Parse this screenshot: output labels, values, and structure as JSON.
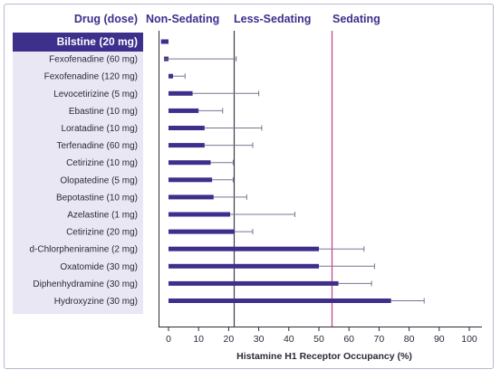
{
  "chart_data": {
    "type": "bar",
    "orientation": "horizontal",
    "header": {
      "drug_dose": "Drug (dose)",
      "zones": [
        "Non-Sedating",
        "Less-Sedating",
        "Sedating"
      ]
    },
    "categories": [
      "Bilstine (20 mg)",
      "Fexofenadine (60 mg)",
      "Fexofenadine (120 mg)",
      "Levocetirizine (5 mg)",
      "Ebastine (10 mg)",
      "Loratadine (10 mg)",
      "Terfenadine (60 mg)",
      "Cetirizine (10 mg)",
      "Olopatedine (5 mg)",
      "Bepotastine (10 mg)",
      "Azelastine (1 mg)",
      "Cetirizine (20 mg)",
      "d-Chlorpheniramine (2 mg)",
      "Oxatomide (30 mg)",
      "Diphenhydramine (30 mg)",
      "Hydroxyzine (30 mg)"
    ],
    "highlight_index": 0,
    "values": [
      -2.5,
      -1.5,
      1.5,
      8,
      10,
      12,
      12,
      14,
      14.5,
      15,
      20.5,
      22,
      50,
      50,
      56.5,
      74
    ],
    "error_upper": [
      null,
      22.5,
      5.5,
      30,
      18,
      31,
      28,
      21.5,
      21.5,
      26,
      42,
      28,
      65,
      68.5,
      67.5,
      85
    ],
    "xlabel": "Histamine H1 Receptor Occupancy (%)",
    "xlim": [
      -3,
      102
    ],
    "xticks": [
      0,
      10,
      20,
      30,
      40,
      50,
      60,
      70,
      80,
      90,
      100
    ],
    "thresholds": [
      20,
      50
    ],
    "colors": {
      "bar": "#3d2f8c",
      "header_text": "#3d2f8c",
      "label_panel": "#e9e7f3",
      "highlight_label_bg": "#3d2f8c",
      "less_sedating_line": "#3d3d4d",
      "sedating_line": "#c0408a",
      "error_bar": "#7a7492"
    }
  }
}
